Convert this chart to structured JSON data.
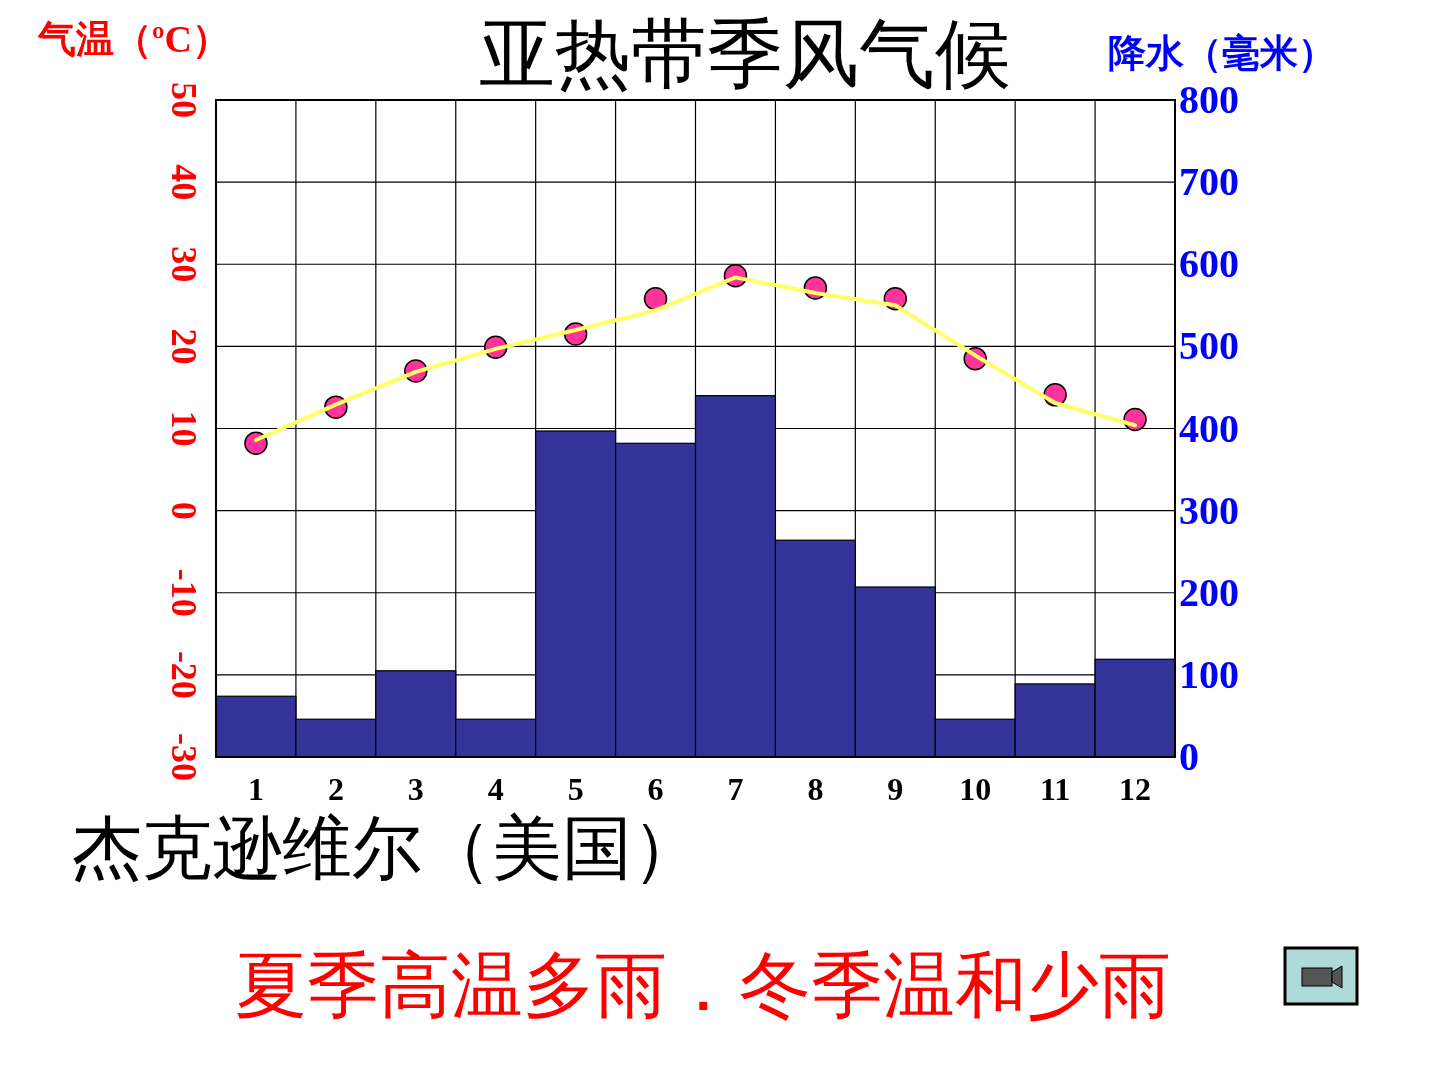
{
  "chart_data": {
    "type": "bar",
    "title": "亚热带季风气候",
    "ylabel": "气温（ºC）",
    "y2label": "降水（毫米）",
    "categories": [
      "1",
      "2",
      "3",
      "4",
      "5",
      "6",
      "7",
      "8",
      "9",
      "10",
      "11",
      "12"
    ],
    "series": [
      {
        "type": "bar",
        "axis": "y2",
        "color": "#333399",
        "values": [
          74,
          46,
          105,
          46,
          397,
          382,
          440,
          264,
          207,
          46,
          89,
          119
        ]
      },
      {
        "type": "scatter",
        "axis": "y",
        "color": "#ff3399",
        "marker": "circle",
        "values": [
          8.2,
          12.6,
          17.0,
          19.9,
          21.5,
          25.8,
          28.6,
          27.1,
          25.8,
          18.5,
          14.1,
          11.1
        ]
      },
      {
        "type": "line",
        "axis": "y",
        "color": "#ffff66",
        "marker": "none",
        "line_style": "solid",
        "values": [
          8.6,
          12.9,
          16.9,
          19.7,
          22.0,
          24.4,
          28.4,
          26.5,
          25.0,
          18.9,
          13.1,
          10.4
        ]
      }
    ],
    "ylim": [
      -30,
      50
    ],
    "yticks": [
      -30,
      -20,
      -10,
      0,
      10,
      20,
      30,
      40,
      50
    ],
    "y2lim": [
      0,
      800
    ],
    "y2ticks": [
      0,
      100,
      200,
      300,
      400,
      500,
      600,
      700,
      800
    ],
    "grid": true,
    "annotations": [
      "杰克逊维尔（美国）",
      "夏季高温多雨．冬季温和少雨"
    ]
  }
}
